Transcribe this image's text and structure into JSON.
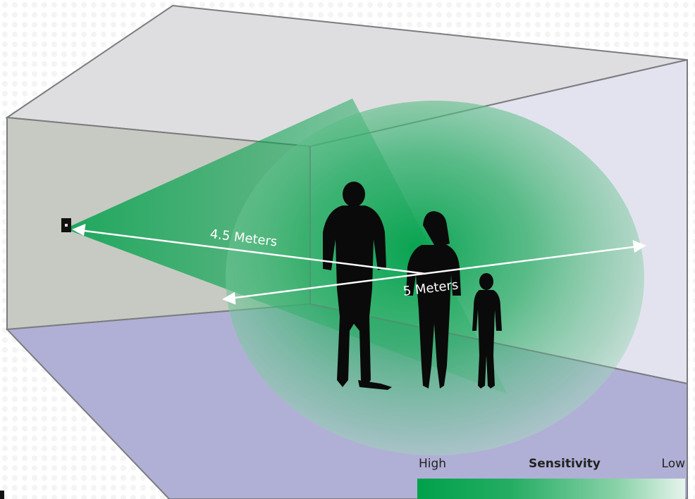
{
  "measurements": {
    "range_label": "4.5 Meters",
    "width_label": "5 Meters"
  },
  "legend": {
    "title": "Sensitivity",
    "high_label": "High",
    "low_label": "Low"
  },
  "colors": {
    "ceiling": "#dedee0",
    "left_wall": "#c7cac2",
    "back_wall": "#d9d9df",
    "right_wall": "#e3e3ef",
    "floor": "#b0b0d6",
    "sensitivity_high": "#00a14b",
    "sensitivity_low": "#e6f4ec",
    "edges": "#7b7b80",
    "silhouettes": "#0a0a0a"
  },
  "icons": {
    "sensor": "sensor-device-icon"
  }
}
